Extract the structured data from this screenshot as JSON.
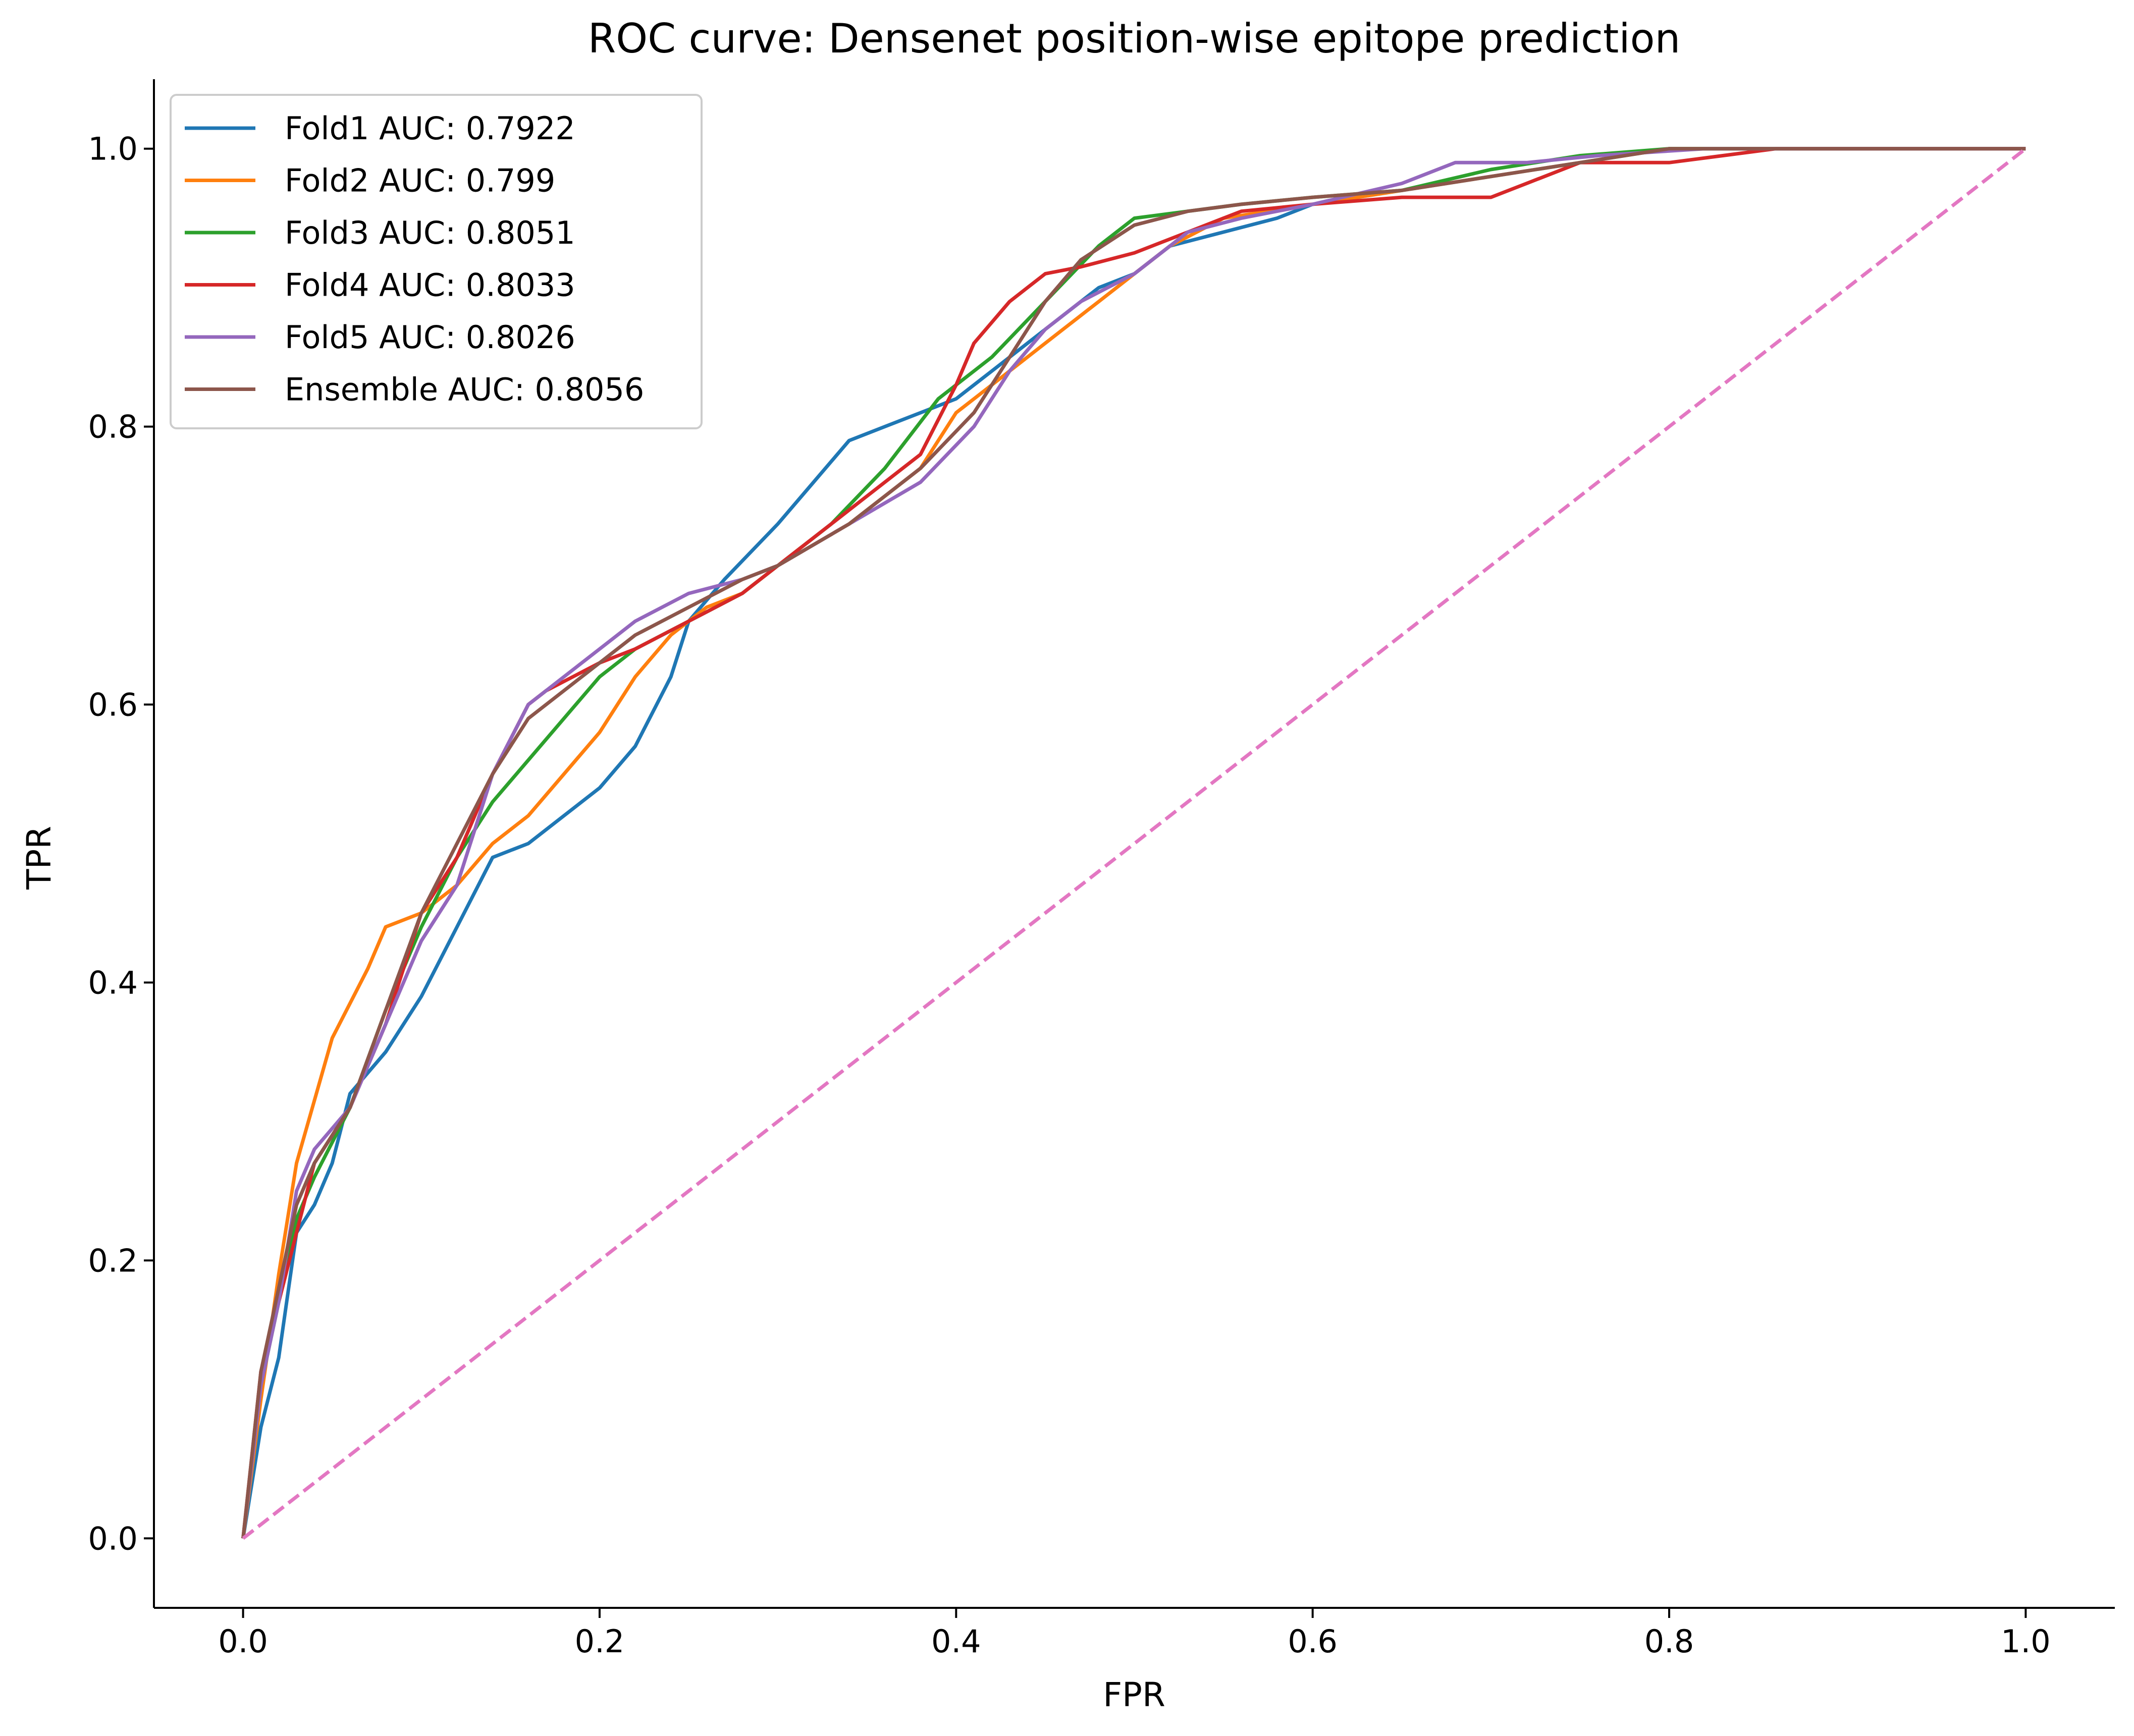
{
  "chart_data": {
    "type": "line",
    "title": "ROC curve: Densenet position-wise epitope prediction",
    "xlabel": "FPR",
    "ylabel": "TPR",
    "xlim": [
      -0.05,
      1.05
    ],
    "ylim": [
      -0.05,
      1.05
    ],
    "xticks": [
      0.0,
      0.2,
      0.4,
      0.6,
      0.8,
      1.0
    ],
    "xtick_labels": [
      "0.0",
      "0.2",
      "0.4",
      "0.6",
      "0.8",
      "1.0"
    ],
    "yticks": [
      0.0,
      0.2,
      0.4,
      0.6,
      0.8,
      1.0
    ],
    "ytick_labels": [
      "0.0",
      "0.2",
      "0.4",
      "0.6",
      "0.8",
      "1.0"
    ],
    "grid": false,
    "legend_position": "top-left",
    "series": [
      {
        "name": "Fold1 AUC: 0.7922",
        "color": "#1f77b4",
        "x": [
          0,
          0.01,
          0.02,
          0.03,
          0.04,
          0.05,
          0.06,
          0.08,
          0.1,
          0.12,
          0.14,
          0.16,
          0.18,
          0.2,
          0.22,
          0.24,
          0.25,
          0.27,
          0.3,
          0.32,
          0.34,
          0.36,
          0.38,
          0.4,
          0.42,
          0.44,
          0.46,
          0.48,
          0.5,
          0.52,
          0.55,
          0.58,
          0.6,
          0.65,
          0.7,
          0.75,
          0.8,
          0.9,
          1.0
        ],
        "y": [
          0,
          0.08,
          0.13,
          0.22,
          0.24,
          0.27,
          0.32,
          0.35,
          0.39,
          0.44,
          0.49,
          0.5,
          0.52,
          0.54,
          0.57,
          0.62,
          0.66,
          0.69,
          0.73,
          0.76,
          0.79,
          0.8,
          0.81,
          0.82,
          0.84,
          0.86,
          0.88,
          0.9,
          0.91,
          0.93,
          0.94,
          0.95,
          0.96,
          0.97,
          0.98,
          0.99,
          1.0,
          1.0,
          1.0
        ]
      },
      {
        "name": "Fold2 AUC: 0.799",
        "color": "#ff7f0e",
        "x": [
          0,
          0.01,
          0.02,
          0.03,
          0.05,
          0.07,
          0.08,
          0.1,
          0.12,
          0.14,
          0.16,
          0.18,
          0.2,
          0.22,
          0.24,
          0.26,
          0.28,
          0.3,
          0.34,
          0.38,
          0.4,
          0.42,
          0.44,
          0.46,
          0.48,
          0.5,
          0.52,
          0.55,
          0.6,
          0.65,
          0.7,
          0.75,
          0.8,
          0.9,
          1.0
        ],
        "y": [
          0,
          0.1,
          0.19,
          0.27,
          0.36,
          0.41,
          0.44,
          0.45,
          0.47,
          0.5,
          0.52,
          0.55,
          0.58,
          0.62,
          0.65,
          0.67,
          0.68,
          0.7,
          0.73,
          0.77,
          0.81,
          0.83,
          0.85,
          0.87,
          0.89,
          0.91,
          0.93,
          0.95,
          0.96,
          0.97,
          0.98,
          0.99,
          1.0,
          1.0,
          1.0
        ]
      },
      {
        "name": "Fold3 AUC: 0.8051",
        "color": "#2ca02c",
        "x": [
          0,
          0.01,
          0.02,
          0.03,
          0.04,
          0.06,
          0.08,
          0.1,
          0.12,
          0.14,
          0.16,
          0.18,
          0.2,
          0.22,
          0.25,
          0.28,
          0.3,
          0.33,
          0.36,
          0.39,
          0.42,
          0.45,
          0.48,
          0.5,
          0.53,
          0.56,
          0.6,
          0.65,
          0.7,
          0.75,
          0.8,
          0.9,
          1.0
        ],
        "y": [
          0,
          0.11,
          0.17,
          0.23,
          0.26,
          0.31,
          0.38,
          0.44,
          0.49,
          0.53,
          0.56,
          0.59,
          0.62,
          0.64,
          0.66,
          0.68,
          0.7,
          0.73,
          0.77,
          0.82,
          0.85,
          0.89,
          0.93,
          0.95,
          0.955,
          0.96,
          0.965,
          0.97,
          0.985,
          0.995,
          1.0,
          1.0,
          1.0
        ]
      },
      {
        "name": "Fold4 AUC: 0.8033",
        "color": "#d62728",
        "x": [
          0,
          0.01,
          0.02,
          0.03,
          0.04,
          0.06,
          0.08,
          0.1,
          0.12,
          0.14,
          0.16,
          0.17,
          0.2,
          0.22,
          0.25,
          0.28,
          0.3,
          0.34,
          0.38,
          0.4,
          0.41,
          0.43,
          0.45,
          0.47,
          0.5,
          0.53,
          0.56,
          0.6,
          0.65,
          0.7,
          0.72,
          0.75,
          0.8,
          0.86,
          1.0
        ],
        "y": [
          0,
          0.12,
          0.17,
          0.22,
          0.27,
          0.31,
          0.37,
          0.45,
          0.49,
          0.55,
          0.6,
          0.61,
          0.63,
          0.64,
          0.66,
          0.68,
          0.7,
          0.74,
          0.78,
          0.83,
          0.86,
          0.89,
          0.91,
          0.915,
          0.925,
          0.94,
          0.955,
          0.96,
          0.965,
          0.965,
          0.975,
          0.99,
          0.99,
          1.0,
          1.0
        ]
      },
      {
        "name": "Fold5 AUC: 0.8026",
        "color": "#9467bd",
        "x": [
          0,
          0.01,
          0.02,
          0.03,
          0.04,
          0.06,
          0.08,
          0.1,
          0.12,
          0.14,
          0.16,
          0.18,
          0.2,
          0.22,
          0.25,
          0.28,
          0.3,
          0.34,
          0.38,
          0.41,
          0.43,
          0.45,
          0.47,
          0.5,
          0.53,
          0.56,
          0.6,
          0.65,
          0.68,
          0.72,
          0.76,
          0.82,
          0.9,
          1.0
        ],
        "y": [
          0,
          0.11,
          0.17,
          0.25,
          0.28,
          0.31,
          0.37,
          0.43,
          0.47,
          0.55,
          0.6,
          0.62,
          0.64,
          0.66,
          0.68,
          0.69,
          0.7,
          0.73,
          0.76,
          0.8,
          0.84,
          0.87,
          0.89,
          0.91,
          0.94,
          0.95,
          0.96,
          0.975,
          0.99,
          0.99,
          0.995,
          1.0,
          1.0,
          1.0
        ]
      },
      {
        "name": "Ensemble AUC: 0.8056",
        "color": "#8c564b",
        "x": [
          0,
          0.01,
          0.02,
          0.03,
          0.04,
          0.06,
          0.08,
          0.1,
          0.12,
          0.14,
          0.16,
          0.18,
          0.2,
          0.22,
          0.25,
          0.28,
          0.3,
          0.34,
          0.38,
          0.41,
          0.43,
          0.45,
          0.47,
          0.5,
          0.53,
          0.56,
          0.6,
          0.65,
          0.7,
          0.75,
          0.8,
          0.9,
          1.0
        ],
        "y": [
          0,
          0.12,
          0.18,
          0.24,
          0.27,
          0.31,
          0.38,
          0.45,
          0.5,
          0.55,
          0.59,
          0.61,
          0.63,
          0.65,
          0.67,
          0.69,
          0.7,
          0.73,
          0.77,
          0.81,
          0.85,
          0.89,
          0.92,
          0.945,
          0.955,
          0.96,
          0.965,
          0.97,
          0.98,
          0.99,
          1.0,
          1.0,
          1.0
        ]
      },
      {
        "name": "",
        "color": "#e377c2",
        "dashed": true,
        "x": [
          0,
          1
        ],
        "y": [
          0,
          1
        ]
      }
    ]
  }
}
